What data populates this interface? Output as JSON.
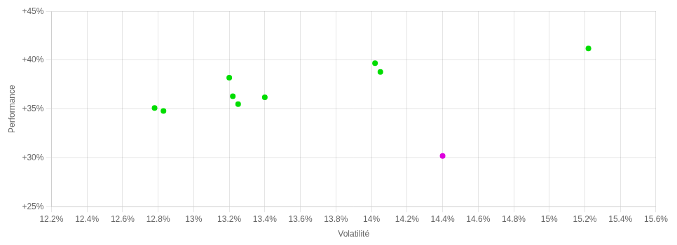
{
  "chart_data": {
    "type": "scatter",
    "xlabel": "Volatilité",
    "ylabel": "Performance",
    "xlim": [
      12.2,
      15.6
    ],
    "ylim": [
      25,
      45
    ],
    "xticks": [
      {
        "value": 12.2,
        "label": "12.2%"
      },
      {
        "value": 12.4,
        "label": "12.4%"
      },
      {
        "value": 12.6,
        "label": "12.6%"
      },
      {
        "value": 12.8,
        "label": "12.8%"
      },
      {
        "value": 13.0,
        "label": "13%"
      },
      {
        "value": 13.2,
        "label": "13.2%"
      },
      {
        "value": 13.4,
        "label": "13.4%"
      },
      {
        "value": 13.6,
        "label": "13.6%"
      },
      {
        "value": 13.8,
        "label": "13.8%"
      },
      {
        "value": 14.0,
        "label": "14%"
      },
      {
        "value": 14.2,
        "label": "14.2%"
      },
      {
        "value": 14.4,
        "label": "14.4%"
      },
      {
        "value": 14.6,
        "label": "14.6%"
      },
      {
        "value": 14.8,
        "label": "14.8%"
      },
      {
        "value": 15.0,
        "label": "15%"
      },
      {
        "value": 15.2,
        "label": "15.2%"
      },
      {
        "value": 15.4,
        "label": "15.4%"
      },
      {
        "value": 15.6,
        "label": "15.6%"
      }
    ],
    "yticks": [
      {
        "value": 25,
        "label": "+25%"
      },
      {
        "value": 30,
        "label": "+30%"
      },
      {
        "value": 35,
        "label": "+35%"
      },
      {
        "value": 40,
        "label": "+40%"
      },
      {
        "value": 45,
        "label": "+45%"
      }
    ],
    "grid": true,
    "series": [
      {
        "color": "#00dd00",
        "x": [
          12.78,
          12.83,
          13.2,
          13.22,
          13.25,
          13.4,
          14.02,
          14.05,
          15.22
        ],
        "values": [
          35.1,
          34.8,
          38.2,
          36.3,
          35.5,
          36.2,
          39.7,
          38.8,
          41.2
        ]
      },
      {
        "color": "#dd00dd",
        "x": [
          14.4
        ],
        "values": [
          30.2
        ]
      }
    ]
  }
}
